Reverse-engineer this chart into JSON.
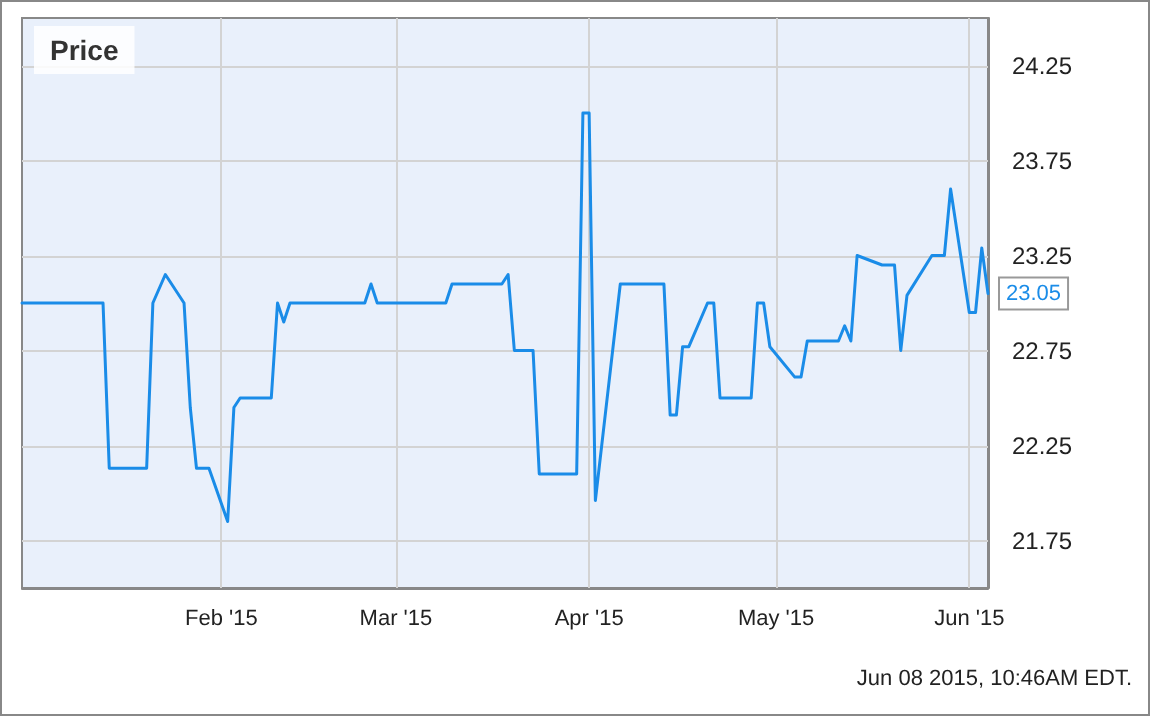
{
  "chart_data": {
    "type": "line",
    "title": "Price",
    "annotations": [
      {
        "text": "23.05",
        "x": "2015-06-04",
        "y": 23.05
      },
      "Jun 08 2015, 10:46AM EDT."
    ],
    "x": [
      "2014-12-31",
      "2015-01-13",
      "2015-01-14",
      "2015-01-20",
      "2015-01-21",
      "2015-01-23",
      "2015-01-26",
      "2015-01-27",
      "2015-01-28",
      "2015-01-30",
      "2015-02-02",
      "2015-02-03",
      "2015-02-04",
      "2015-02-09",
      "2015-02-10",
      "2015-02-11",
      "2015-02-12",
      "2015-02-24",
      "2015-02-25",
      "2015-02-26",
      "2015-03-09",
      "2015-03-10",
      "2015-03-18",
      "2015-03-19",
      "2015-03-20",
      "2015-03-23",
      "2015-03-24",
      "2015-03-30",
      "2015-03-31",
      "2015-04-01",
      "2015-04-02",
      "2015-04-06",
      "2015-04-13",
      "2015-04-14",
      "2015-04-15",
      "2015-04-16",
      "2015-04-17",
      "2015-04-20",
      "2015-04-21",
      "2015-04-22",
      "2015-04-27",
      "2015-04-28",
      "2015-04-29",
      "2015-04-30",
      "2015-05-04",
      "2015-05-05",
      "2015-05-06",
      "2015-05-11",
      "2015-05-12",
      "2015-05-13",
      "2015-05-14",
      "2015-05-18",
      "2015-05-20",
      "2015-05-21",
      "2015-05-22",
      "2015-05-26",
      "2015-05-28",
      "2015-05-29",
      "2015-06-01",
      "2015-06-02",
      "2015-06-03",
      "2015-06-04"
    ],
    "series": [
      {
        "color": "#1a8ce8",
        "values": [
          23.0,
          23.0,
          22.13,
          22.13,
          23.0,
          23.15,
          23.0,
          22.45,
          22.13,
          22.13,
          21.85,
          22.45,
          22.5,
          22.5,
          23.0,
          22.9,
          23.0,
          23.0,
          23.1,
          23.0,
          23.0,
          23.1,
          23.1,
          23.15,
          22.75,
          22.75,
          22.1,
          22.1,
          24.0,
          24.0,
          21.96,
          23.1,
          23.1,
          22.41,
          22.41,
          22.77,
          22.77,
          23.0,
          23.0,
          22.5,
          22.5,
          23.0,
          23.0,
          22.77,
          22.61,
          22.61,
          22.8,
          22.8,
          22.88,
          22.8,
          23.25,
          23.2,
          23.2,
          22.75,
          23.04,
          23.25,
          23.25,
          23.6,
          22.95,
          22.95,
          23.29,
          23.05
        ]
      }
    ],
    "xlim": [
      "2014-12-31",
      "2015-06-04"
    ],
    "xticks": [
      {
        "value": "2015-02-01",
        "label": "Feb '15"
      },
      {
        "value": "2015-03-01",
        "label": "Mar '15"
      },
      {
        "value": "2015-04-01",
        "label": "Apr '15"
      },
      {
        "value": "2015-05-01",
        "label": "May '15"
      },
      {
        "value": "2015-06-01",
        "label": "Jun '15"
      }
    ],
    "ylim": [
      21.5,
      24.5
    ],
    "yticks": [
      {
        "value": 21.75,
        "label": "21.75"
      },
      {
        "value": 22.25,
        "label": "22.25"
      },
      {
        "value": 22.75,
        "label": "22.75"
      },
      {
        "value": 23.25,
        "label": "23.25"
      },
      {
        "value": 23.75,
        "label": "23.75"
      },
      {
        "value": 24.25,
        "label": "24.25"
      }
    ],
    "grid": true,
    "marker": "none",
    "line_style": "solid"
  }
}
